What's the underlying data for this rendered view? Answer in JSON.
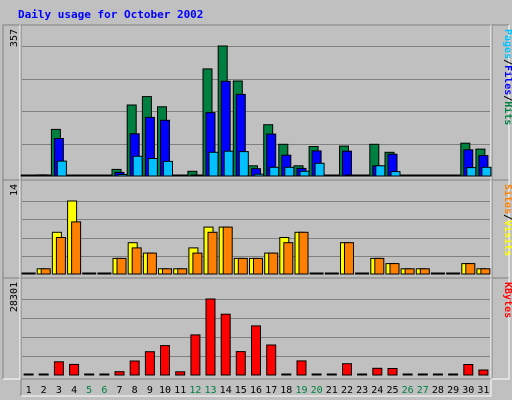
{
  "chart_data": {
    "type": "bar",
    "title": "Daily usage for October 2002",
    "days": [
      "1",
      "2",
      "3",
      "4",
      "5",
      "6",
      "7",
      "8",
      "9",
      "10",
      "11",
      "12",
      "13",
      "14",
      "15",
      "16",
      "17",
      "18",
      "19",
      "20",
      "21",
      "22",
      "23",
      "24",
      "25",
      "26",
      "27",
      "28",
      "29",
      "30",
      "31"
    ],
    "weekend_days": [
      "5",
      "6",
      "12",
      "13",
      "19",
      "20",
      "26",
      "27"
    ],
    "panels": [
      {
        "name": "hits-files-pages",
        "max_label": "357",
        "ylim": [
          0,
          357
        ],
        "legend": [
          "Pages",
          "/",
          "Files",
          "/",
          "Hits"
        ],
        "legend_colors": [
          "#00c0ff",
          "#000000",
          "#0000ff",
          "#000000",
          "#008040"
        ],
        "series": [
          {
            "name": "Hits",
            "color": "#008040",
            "values": [
              0,
              3,
              128,
              0,
              0,
              0,
              18,
              195,
              218,
              190,
              0,
              13,
              294,
              357,
              261,
              28,
              141,
              87,
              28,
              81,
              0,
              82,
              0,
              87,
              65,
              0,
              0,
              0,
              0,
              90,
              74
            ]
          },
          {
            "name": "Files",
            "color": "#0000ff",
            "values": [
              0,
              3,
              103,
              0,
              0,
              0,
              10,
              116,
              161,
              153,
              0,
              0,
              174,
              260,
              224,
              20,
              115,
              57,
              21,
              69,
              0,
              68,
              0,
              28,
              60,
              0,
              0,
              0,
              0,
              72,
              56
            ]
          },
          {
            "name": "Pages",
            "color": "#00c0ff",
            "values": [
              0,
              0,
              41,
              0,
              0,
              0,
              4,
              54,
              48,
              40,
              0,
              0,
              65,
              68,
              67,
              5,
              24,
              24,
              13,
              35,
              0,
              0,
              0,
              28,
              12,
              0,
              0,
              0,
              0,
              23,
              24
            ]
          }
        ]
      },
      {
        "name": "visits-sites",
        "max_label": "14",
        "ylim": [
          0,
          14
        ],
        "legend": [
          "Sites",
          "/",
          "Visits"
        ],
        "legend_colors": [
          "#ff8000",
          "#000000",
          "#ffff00"
        ],
        "series": [
          {
            "name": "Visits",
            "color": "#ffff00",
            "values": [
              0,
              1,
              8,
              14,
              0,
              0,
              3,
              6,
              4,
              1,
              1,
              5,
              9,
              9,
              3,
              3,
              4,
              7,
              8,
              0,
              0,
              6,
              0,
              3,
              2,
              1,
              1,
              0,
              0,
              2,
              1
            ]
          },
          {
            "name": "Sites",
            "color": "#ff8000",
            "values": [
              0,
              1,
              7,
              10,
              0,
              0,
              3,
              5,
              4,
              1,
              1,
              4,
              8,
              9,
              3,
              3,
              4,
              6,
              8,
              0,
              0,
              6,
              0,
              3,
              2,
              1,
              1,
              0,
              0,
              2,
              1
            ]
          }
        ]
      },
      {
        "name": "kbytes",
        "max_label": "28301",
        "ylim": [
          0,
          28301
        ],
        "legend": [
          "KBytes"
        ],
        "legend_colors": [
          "#ff0000"
        ],
        "series": [
          {
            "name": "KBytes",
            "color": "#ff0000",
            "values": [
              0,
              0,
              4930,
              3950,
              0,
              0,
              1220,
              5200,
              8690,
              10960,
              1210,
              14950,
              28301,
              22650,
              8700,
              18300,
              11190,
              0,
              5250,
              0,
              0,
              4200,
              0,
              2510,
              2420,
              0,
              0,
              0,
              0,
              3900,
              1880
            ]
          }
        ]
      }
    ]
  }
}
